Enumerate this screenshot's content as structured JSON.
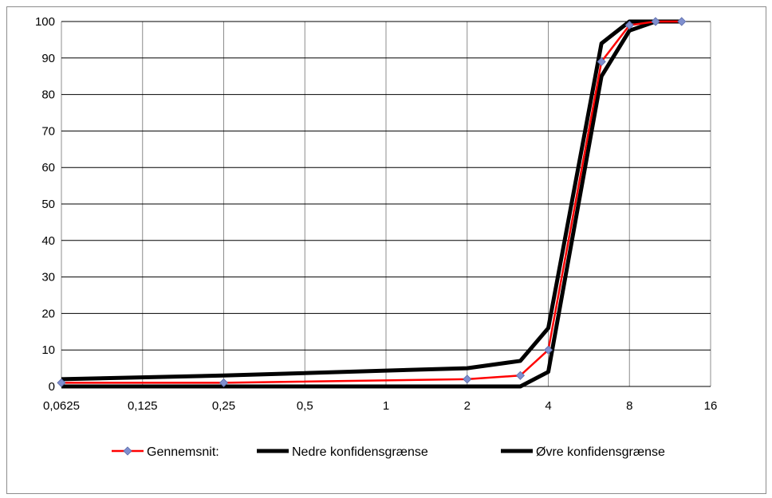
{
  "chart_data": {
    "type": "line",
    "title": "",
    "xlabel": "",
    "ylabel": "",
    "x_scale": "log2",
    "xlim": [
      0.0625,
      16
    ],
    "ylim": [
      0,
      100
    ],
    "x_ticks": [
      "0,0625",
      "0,125",
      "0,25",
      "0,5",
      "1",
      "2",
      "4",
      "8",
      "16"
    ],
    "y_ticks": [
      "0",
      "10",
      "20",
      "30",
      "40",
      "50",
      "60",
      "70",
      "80",
      "90",
      "100"
    ],
    "grid": true,
    "legend_position": "bottom",
    "series": [
      {
        "name": "Gennemsnit:",
        "color": "#ff0000",
        "marker_color": "#7f8fcf",
        "marker": "diamond",
        "x": [
          0.0625,
          0.25,
          2,
          3.15,
          4,
          6.3,
          8,
          10,
          12.5
        ],
        "y": [
          1,
          1,
          2,
          3,
          10,
          89,
          99,
          100,
          100
        ]
      },
      {
        "name": "Nedre konfidensgrænse",
        "color": "#000000",
        "marker": "none",
        "x": [
          0.0625,
          0.25,
          2,
          3.15,
          4,
          6.3,
          8,
          10,
          12.5
        ],
        "y": [
          0,
          0,
          0,
          0,
          4,
          85,
          97.5,
          100,
          100
        ]
      },
      {
        "name": "Øvre konfidensgrænse",
        "color": "#000000",
        "marker": "none",
        "x": [
          0.0625,
          0.25,
          2,
          3.15,
          4,
          6.3,
          8,
          10,
          12.5
        ],
        "y": [
          2,
          3,
          5,
          7,
          16,
          94,
          100,
          100,
          100
        ]
      }
    ]
  }
}
